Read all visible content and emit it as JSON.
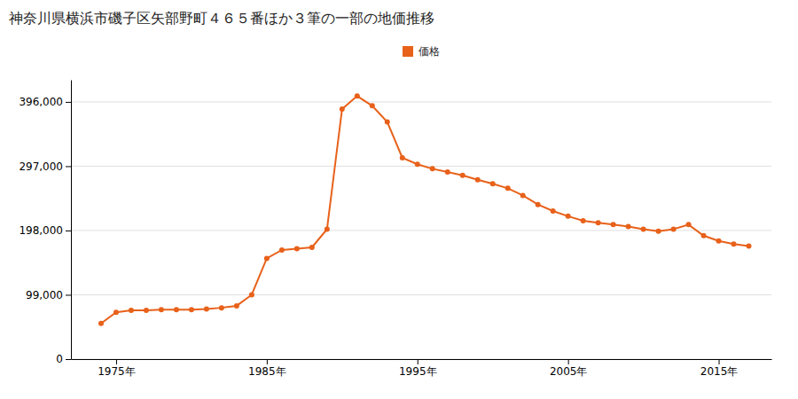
{
  "chart_data": {
    "type": "line",
    "title": "神奈川県横浜市磯子区矢部野町４６５番ほか３筆の一部の地価推移",
    "x": [
      1974,
      1975,
      1976,
      1977,
      1978,
      1979,
      1980,
      1981,
      1982,
      1983,
      1984,
      1985,
      1986,
      1987,
      1988,
      1989,
      1990,
      1991,
      1992,
      1993,
      1994,
      1995,
      1996,
      1997,
      1998,
      1999,
      2000,
      2001,
      2002,
      2003,
      2004,
      2005,
      2006,
      2007,
      2008,
      2009,
      2010,
      2011,
      2012,
      2013,
      2014,
      2015,
      2016,
      2017
    ],
    "series": [
      {
        "name": "価格",
        "color": "#E8611A",
        "marker": "circle",
        "values": [
          55000,
          72000,
          75000,
          75000,
          76000,
          76000,
          76000,
          77000,
          79000,
          82000,
          99000,
          155000,
          168000,
          170000,
          172000,
          200000,
          385000,
          405000,
          390000,
          365000,
          310000,
          300000,
          293000,
          288000,
          283000,
          276000,
          270000,
          263000,
          252000,
          238000,
          228000,
          220000,
          213000,
          210000,
          207000,
          204000,
          200000,
          197000,
          200000,
          207000,
          190000,
          182000,
          177000,
          174000
        ]
      }
    ],
    "xlim": [
      1972,
      2018.5
    ],
    "ylim": [
      0,
      430000
    ],
    "xticks": [
      {
        "value": 1975,
        "label": "1975年"
      },
      {
        "value": 1985,
        "label": "1985年"
      },
      {
        "value": 1995,
        "label": "1995年"
      },
      {
        "value": 2005,
        "label": "2005年"
      },
      {
        "value": 2015,
        "label": "2015年"
      }
    ],
    "yticks": [
      0,
      {
        "value": 99000,
        "label": "99,000"
      },
      {
        "value": 198000,
        "label": "198,000"
      },
      {
        "value": 297000,
        "label": "297,000"
      },
      {
        "value": 396000,
        "label": "396,000"
      }
    ],
    "grid": true,
    "legend": "top"
  }
}
